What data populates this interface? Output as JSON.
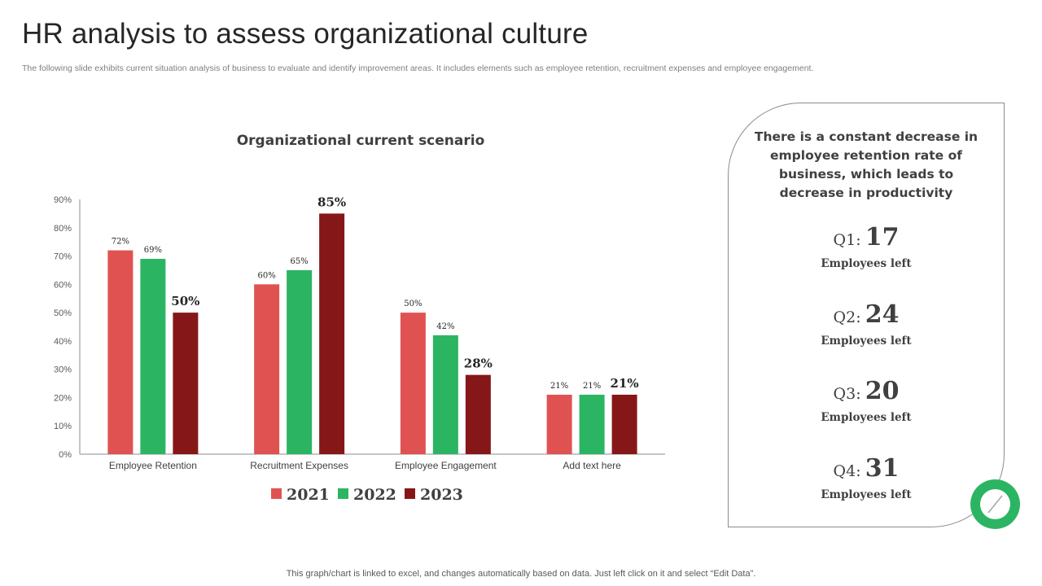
{
  "slide": {
    "title": "HR analysis to assess organizational culture",
    "subtitle": "The following slide exhibits current situation analysis of business to evaluate and identify improvement areas. It includes elements such as employee retention, recruitment expenses and employee engagement.",
    "footer": "This graph/chart is linked to excel,  and changes automatically based on data. Just left click on it and select “Edit Data”."
  },
  "panel": {
    "heading": "There is a constant decrease in employee retention rate of business, which leads to decrease in productivity",
    "quarters": [
      {
        "label": "Q1:",
        "value": "17",
        "caption": "Employees left"
      },
      {
        "label": "Q2:",
        "value": "24",
        "caption": "Employees left"
      },
      {
        "label": "Q3:",
        "value": "20",
        "caption": "Employees left"
      },
      {
        "label": "Q4:",
        "value": "31",
        "caption": "Employees left"
      }
    ]
  },
  "colors": {
    "series_2021": "#e05252",
    "series_2022": "#2bb563",
    "series_2023": "#861718",
    "badge": "#2bb563"
  },
  "chart_data": {
    "type": "bar",
    "title": "Organizational current scenario",
    "categories": [
      "Employee Retention",
      "Recruitment Expenses",
      "Employee Engagement",
      "Add text here"
    ],
    "series": [
      {
        "name": "2021",
        "values": [
          72,
          60,
          50,
          21
        ]
      },
      {
        "name": "2022",
        "values": [
          69,
          65,
          42,
          21
        ]
      },
      {
        "name": "2023",
        "values": [
          50,
          85,
          28,
          21
        ]
      }
    ],
    "value_suffix": "%",
    "ylim": [
      0,
      90
    ],
    "yticks": [
      0,
      10,
      20,
      30,
      40,
      50,
      60,
      70,
      80,
      90
    ],
    "ytick_labels": [
      "0%",
      "10%",
      "20%",
      "30%",
      "40%",
      "50%",
      "60%",
      "70%",
      "80%",
      "90%"
    ],
    "xlabel": "",
    "ylabel": "",
    "grid": false,
    "legend": "bottom"
  }
}
